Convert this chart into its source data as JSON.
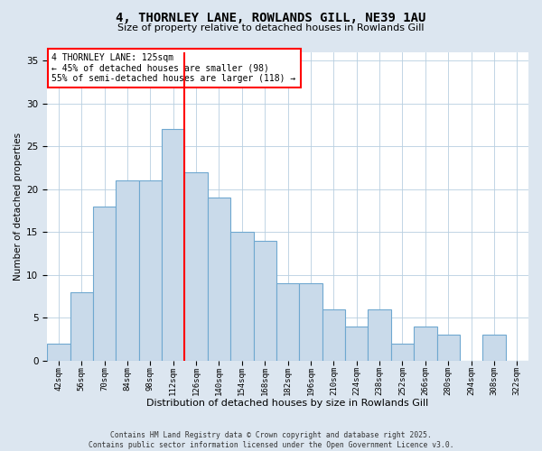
{
  "title": "4, THORNLEY LANE, ROWLANDS GILL, NE39 1AU",
  "subtitle": "Size of property relative to detached houses in Rowlands Gill",
  "xlabel": "Distribution of detached houses by size in Rowlands Gill",
  "ylabel": "Number of detached properties",
  "categories": [
    "42sqm",
    "56sqm",
    "70sqm",
    "84sqm",
    "98sqm",
    "112sqm",
    "126sqm",
    "140sqm",
    "154sqm",
    "168sqm",
    "182sqm",
    "196sqm",
    "210sqm",
    "224sqm",
    "238sqm",
    "252sqm",
    "266sqm",
    "280sqm",
    "294sqm",
    "308sqm",
    "322sqm"
  ],
  "values": [
    2,
    8,
    18,
    21,
    21,
    27,
    22,
    19,
    15,
    14,
    9,
    9,
    6,
    4,
    6,
    2,
    4,
    3,
    0,
    3,
    0
  ],
  "bar_color": "#c9daea",
  "bar_edge_color": "#6fa8d0",
  "redline_index": 6,
  "ylim": [
    0,
    36
  ],
  "yticks": [
    0,
    5,
    10,
    15,
    20,
    25,
    30,
    35
  ],
  "annotation_title": "4 THORNLEY LANE: 125sqm",
  "annotation_line1": "← 45% of detached houses are smaller (98)",
  "annotation_line2": "55% of semi-detached houses are larger (118) →",
  "footer_line1": "Contains HM Land Registry data © Crown copyright and database right 2025.",
  "footer_line2": "Contains public sector information licensed under the Open Government Licence v3.0.",
  "background_color": "#dce6f0",
  "plot_bg_color": "#ffffff"
}
